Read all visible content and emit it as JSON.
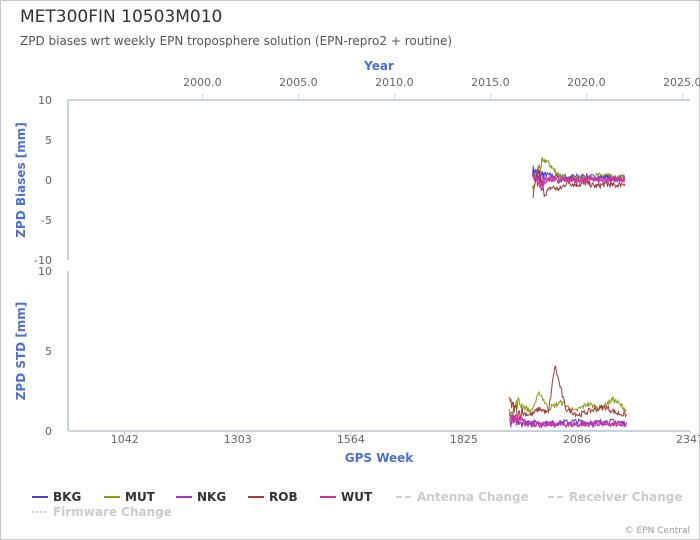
{
  "title": "MET300FIN 10503M010",
  "subtitle": "ZPD biases wrt weekly EPN troposphere solution (EPN-repro2 + routine)",
  "credits": "© EPN Central",
  "colors": {
    "BKG": "#4b3fd1",
    "MUT": "#8f9a1c",
    "NKG": "#a335c7",
    "ROB": "#a33a3a",
    "WUT": "#d6339a",
    "axis_title": "#4a6fd8",
    "axis_line": "#c7d4de"
  },
  "chart_data": [
    {
      "type": "line",
      "name": "bias-panel",
      "xlabel": "Year",
      "ylabel": "ZPD Biases [mm]",
      "x_ticks": [
        "2000.0",
        "2005.0",
        "2010.0",
        "2015.0",
        "2020.0",
        "2025.0"
      ],
      "xlim": [
        1993.0,
        2025.4
      ],
      "y_ticks": [
        "10",
        "5",
        "0",
        "-5",
        "-10"
      ],
      "ylim": [
        -10,
        10
      ],
      "grid": false,
      "series": [
        {
          "name": "BKG",
          "x": [
            2017.2,
            2017.5,
            2018.0,
            2018.5,
            2019.0,
            2019.5,
            2020.0,
            2020.5,
            2021.0,
            2021.5,
            2022.0
          ],
          "y": [
            1.2,
            0.8,
            0.6,
            0.5,
            0.4,
            0.4,
            0.5,
            0.3,
            0.4,
            0.2,
            0.3
          ]
        },
        {
          "name": "MUT",
          "x": [
            2017.2,
            2017.5,
            2017.9,
            2018.4,
            2019.0,
            2019.5,
            2020.0,
            2020.5,
            2021.0,
            2021.5,
            2022.0
          ],
          "y": [
            -1.5,
            1.5,
            2.5,
            1.0,
            0.0,
            0.3,
            0.2,
            0.5,
            0.6,
            0.2,
            0.4
          ]
        },
        {
          "name": "NKG",
          "x": [
            2017.2,
            2017.5,
            2018.0,
            2018.5,
            2019.0,
            2019.5,
            2020.0,
            2020.5,
            2021.0,
            2021.5,
            2022.0
          ],
          "y": [
            0.5,
            0.0,
            0.2,
            -0.1,
            0.1,
            0.0,
            0.1,
            0.0,
            -0.1,
            0.1,
            0.0
          ]
        },
        {
          "name": "ROB",
          "x": [
            2017.2,
            2017.5,
            2017.8,
            2018.2,
            2018.6,
            2019.0,
            2019.5,
            2020.0,
            2020.5,
            2021.0,
            2021.5,
            2022.0
          ],
          "y": [
            -2.5,
            1.2,
            -1.8,
            -0.9,
            -1.2,
            -0.3,
            -0.6,
            -0.4,
            -0.8,
            -0.5,
            -0.7,
            -0.4
          ]
        },
        {
          "name": "WUT",
          "x": [
            2017.2,
            2017.5,
            2018.0,
            2018.5,
            2019.0,
            2019.5,
            2020.0,
            2020.5,
            2021.0,
            2021.5,
            2022.0
          ],
          "y": [
            0.8,
            -1.0,
            0.1,
            0.2,
            0.0,
            -0.1,
            0.1,
            0.2,
            0.0,
            0.1,
            0.0
          ]
        }
      ]
    },
    {
      "type": "line",
      "name": "std-panel",
      "xlabel": "GPS Week",
      "ylabel": "ZPD STD [mm]",
      "x_ticks": [
        "1042",
        "1303",
        "1564",
        "1825",
        "2086",
        "2347"
      ],
      "xlim": [
        911,
        2347
      ],
      "y_ticks": [
        "10",
        "5",
        "0"
      ],
      "ylim": [
        0,
        10
      ],
      "grid": false,
      "series": [
        {
          "name": "BKG",
          "x": [
            1930,
            1960,
            2000,
            2040,
            2080,
            2120,
            2160,
            2200
          ],
          "y": [
            0.9,
            0.6,
            0.5,
            0.5,
            0.6,
            0.5,
            0.6,
            0.5
          ]
        },
        {
          "name": "MUT",
          "x": [
            1930,
            1950,
            1980,
            2000,
            2020,
            2050,
            2080,
            2110,
            2140,
            2170,
            2200
          ],
          "y": [
            1.0,
            1.8,
            1.2,
            2.4,
            1.4,
            1.8,
            1.2,
            1.7,
            1.4,
            2.0,
            1.3
          ]
        },
        {
          "name": "NKG",
          "x": [
            1930,
            1960,
            2000,
            2040,
            2080,
            2120,
            2160,
            2200
          ],
          "y": [
            0.6,
            0.5,
            0.4,
            0.4,
            0.4,
            0.5,
            0.4,
            0.4
          ]
        },
        {
          "name": "ROB",
          "x": [
            1930,
            1950,
            1980,
            2000,
            2020,
            2035,
            2060,
            2090,
            2120,
            2150,
            2180,
            2200
          ],
          "y": [
            1.8,
            1.2,
            1.0,
            1.4,
            1.1,
            4.1,
            1.4,
            1.0,
            1.3,
            1.5,
            1.1,
            1.0
          ]
        },
        {
          "name": "WUT",
          "x": [
            1930,
            1960,
            2000,
            2040,
            2080,
            2120,
            2160,
            2200
          ],
          "y": [
            0.8,
            0.5,
            0.4,
            0.5,
            0.4,
            0.4,
            0.5,
            0.4
          ]
        }
      ]
    }
  ],
  "legend": {
    "items": [
      {
        "label": "BKG",
        "color": "#4b3fd1",
        "style": "solid",
        "bold": true
      },
      {
        "label": "MUT",
        "color": "#8f9a1c",
        "style": "solid",
        "bold": true
      },
      {
        "label": "NKG",
        "color": "#a335c7",
        "style": "solid",
        "bold": true
      },
      {
        "label": "ROB",
        "color": "#a33a3a",
        "style": "solid",
        "bold": true
      },
      {
        "label": "WUT",
        "color": "#d6339a",
        "style": "solid",
        "bold": true
      },
      {
        "label": "Antenna Change",
        "color": "#d0d0d0",
        "style": "dashed",
        "bold": false
      },
      {
        "label": "Receiver Change",
        "color": "#d0d0d0",
        "style": "dashed",
        "bold": false
      },
      {
        "label": "Firmware Change",
        "color": "#d0d0d0",
        "style": "dotted",
        "bold": false
      }
    ]
  }
}
